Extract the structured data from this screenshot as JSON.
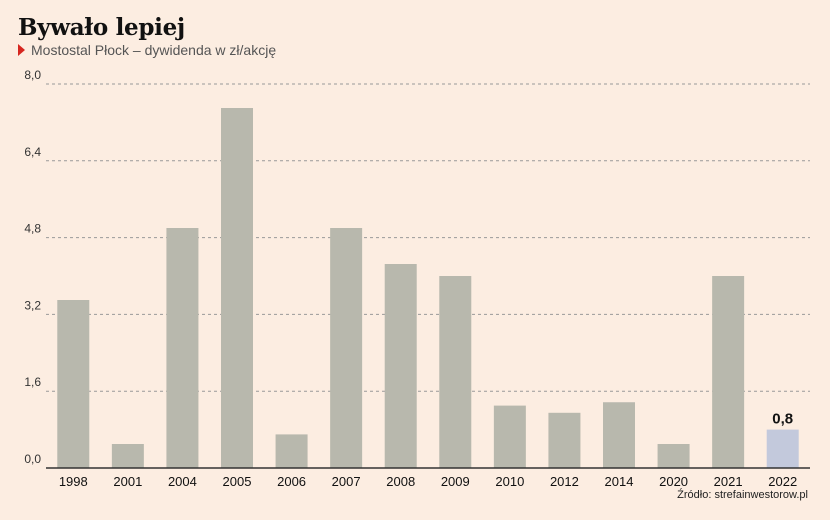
{
  "header": {
    "title": "Bywało lepiej",
    "subtitle": "Mostostal Płock – dywidenda w zł/akcję"
  },
  "source": "Źródło: strefainwestorow.pl",
  "colors": {
    "background": "#fcede1",
    "bar": "#b8b8ad",
    "highlight_bar": "#c3c9dc",
    "grid": "#999999",
    "axis": "#333333",
    "marker": "#d6261f"
  },
  "chart_data": {
    "type": "bar",
    "title": "Bywało lepiej",
    "subtitle": "Mostostal Płock – dywidenda w zł/akcję",
    "categories": [
      "1998",
      "2001",
      "2004",
      "2005",
      "2006",
      "2007",
      "2008",
      "2009",
      "2010",
      "2012",
      "2014",
      "2020",
      "2021",
      "2022"
    ],
    "values": [
      3.5,
      0.5,
      5.0,
      7.5,
      0.7,
      5.0,
      4.25,
      4.0,
      1.3,
      1.15,
      1.37,
      0.5,
      4.0,
      0.8
    ],
    "highlight_index": 13,
    "highlight_label": "0,8",
    "yticks": [
      "0,0",
      "1,6",
      "3,2",
      "4,8",
      "6,4",
      "8,0"
    ],
    "ytick_values": [
      0,
      1.6,
      3.2,
      4.8,
      6.4,
      8.0
    ],
    "ylim": [
      0,
      8.0
    ],
    "xlabel": "",
    "ylabel": "",
    "grid": true
  }
}
